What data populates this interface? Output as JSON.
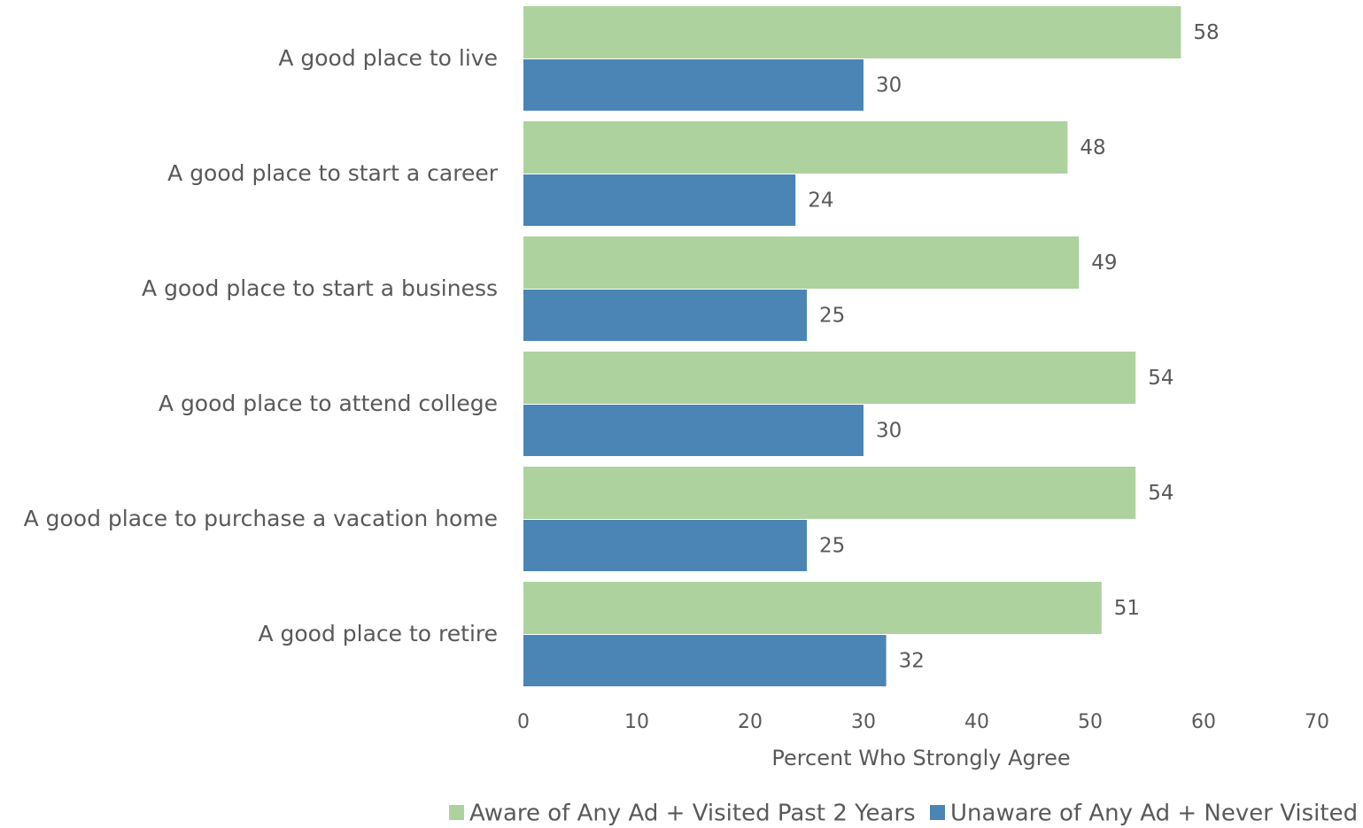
{
  "chart_data": {
    "type": "bar",
    "orientation": "horizontal",
    "categories": [
      "A good place to live",
      "A good place to start a career",
      "A good place to start a business",
      "A good place to attend college",
      "A good place to purchase a vacation home",
      "A good place to retire"
    ],
    "series": [
      {
        "name": "Aware of Any Ad + Visited Past 2 Years",
        "color": "#add29e",
        "values": [
          58,
          48,
          49,
          54,
          54,
          51
        ]
      },
      {
        "name": "Unaware of Any Ad + Never Visited",
        "color": "#4a85b6",
        "values": [
          30,
          24,
          25,
          30,
          25,
          32
        ]
      }
    ],
    "xlabel": "Percent Who Strongly Agree",
    "xlim": [
      0,
      70
    ],
    "xticks": [
      0,
      10,
      20,
      30,
      40,
      50,
      60,
      70
    ],
    "legend": "bottom-right",
    "grid": false
  }
}
